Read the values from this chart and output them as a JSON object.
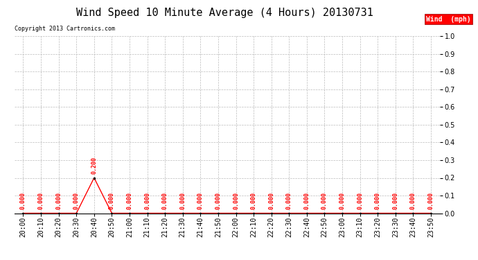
{
  "title": "Wind Speed 10 Minute Average (4 Hours) 20130731",
  "copyright_text": "Copyright 2013 Cartronics.com",
  "legend_label": "Wind  (mph)",
  "ylim": [
    0.0,
    1.0
  ],
  "yticks": [
    0.0,
    0.1,
    0.2,
    0.3,
    0.4,
    0.5,
    0.6,
    0.7,
    0.8,
    0.9,
    1.0
  ],
  "x_labels": [
    "20:00",
    "20:10",
    "20:20",
    "20:30",
    "20:40",
    "20:50",
    "21:00",
    "21:10",
    "21:20",
    "21:30",
    "21:40",
    "21:50",
    "22:00",
    "22:10",
    "22:20",
    "22:30",
    "22:40",
    "22:50",
    "23:00",
    "23:10",
    "23:20",
    "23:30",
    "23:40",
    "23:50"
  ],
  "wind_values": [
    0.0,
    0.0,
    0.0,
    0.0,
    0.2,
    0.0,
    0.0,
    0.0,
    0.0,
    0.0,
    0.0,
    0.0,
    0.0,
    0.0,
    0.0,
    0.0,
    0.0,
    0.0,
    0.0,
    0.0,
    0.0,
    0.0,
    0.0,
    0.0
  ],
  "line_color": "red",
  "marker_color": "black",
  "background_color": "white",
  "grid_color": "#bbbbbb",
  "title_fontsize": 11,
  "axis_fontsize": 7,
  "annotation_fontsize": 6,
  "copyright_fontsize": 6,
  "legend_fontsize": 7
}
